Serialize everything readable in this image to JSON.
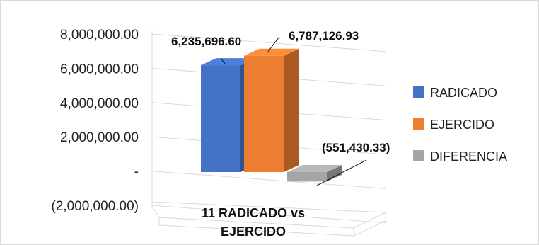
{
  "chart_data": {
    "type": "bar",
    "style": "3d-clustered-column",
    "categories": [
      "11 RADICADO vs EJERCIDO"
    ],
    "category_lines": [
      "11 RADICADO vs",
      "EJERCIDO"
    ],
    "series": [
      {
        "name": "RADICADO",
        "values": [
          6235696.6
        ],
        "label": "6,235,696.60",
        "color": "#4472C4"
      },
      {
        "name": "EJERCIDO",
        "values": [
          6787126.93
        ],
        "label": "6,787,126.93",
        "color": "#ED7D31"
      },
      {
        "name": "DIFERENCIA",
        "values": [
          -551430.33
        ],
        "label": "(551,430.33)",
        "color": "#A5A5A5"
      }
    ],
    "y_ticks": [
      {
        "value": 8000000,
        "label": "8,000,000.00"
      },
      {
        "value": 6000000,
        "label": "6,000,000.00"
      },
      {
        "value": 4000000,
        "label": "4,000,000.00"
      },
      {
        "value": 2000000,
        "label": "2,000,000.00"
      },
      {
        "value": 0,
        "label": "-"
      },
      {
        "value": -2000000,
        "label": "(2,000,000.00)"
      }
    ],
    "ylim": [
      -2000000,
      8000000
    ],
    "grid": true,
    "legend_position": "right"
  }
}
